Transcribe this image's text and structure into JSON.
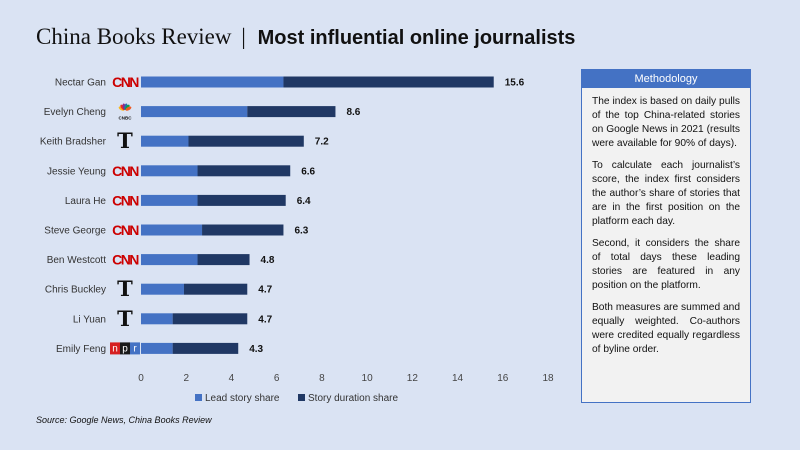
{
  "title": {
    "main": "China Books Review",
    "separator": "|",
    "sub": "Most influential online journalists"
  },
  "chart_data": {
    "type": "bar",
    "orientation": "horizontal",
    "stacked": true,
    "categories": [
      "Nectar Gan",
      "Evelyn Cheng",
      "Keith Bradsher",
      "Jessie Yeung",
      "Laura He",
      "Steve George",
      "Ben Westcott",
      "Chris Buckley",
      "Li Yuan",
      "Emily Feng"
    ],
    "outlets": [
      "CNN",
      "CNBC",
      "NYT",
      "CNN",
      "CNN",
      "CNN",
      "CNN",
      "NYT",
      "NYT",
      "NPR"
    ],
    "series": [
      {
        "name": "Lead story share",
        "color": "#4472c4",
        "values": [
          6.3,
          4.7,
          2.1,
          2.5,
          2.5,
          2.7,
          2.5,
          1.9,
          1.4,
          1.4
        ]
      },
      {
        "name": "Story duration share",
        "color": "#203864",
        "values": [
          9.3,
          3.9,
          5.1,
          4.1,
          3.9,
          3.6,
          2.3,
          2.8,
          3.3,
          2.9
        ]
      }
    ],
    "totals": [
      "15.6",
      "8.6",
      "7.2",
      "6.6",
      "6.4",
      "6.3",
      "4.8",
      "4.7",
      "4.7",
      "4.3"
    ],
    "xlim": [
      0,
      18
    ],
    "xticks": [
      "0",
      "2",
      "4",
      "6",
      "8",
      "10",
      "12",
      "14",
      "16",
      "18"
    ],
    "xlabel": "",
    "ylabel": "",
    "grid": false,
    "legend": "bottom"
  },
  "methodology": {
    "title": "Methodology",
    "paragraphs": [
      "The index is based on daily pulls of the top China-related stories on Google News in 2021 (results were available for 90% of days).",
      "To calculate each journalist’s score, the index first considers the author’s share of stories that are in the first position on the platform each day.",
      "Second, it considers the share of total days these leading stories are featured in any position on the platform.",
      "Both measures are summed and equally weighted. Co-authors were credited equally regardless of byline order."
    ]
  },
  "source": "Source: Google News, China Books Review",
  "logos": {
    "CNN": "CNN",
    "CNBC": "CNBC",
    "NYT": "T",
    "NPR": [
      "n",
      "p",
      "r"
    ]
  },
  "colors": {
    "background": "#dae3f3",
    "lead": "#4472c4",
    "duration": "#203864",
    "cnn": "#cc0000",
    "npr": [
      "#d62021",
      "#1a1a1a",
      "#4472c4"
    ]
  }
}
